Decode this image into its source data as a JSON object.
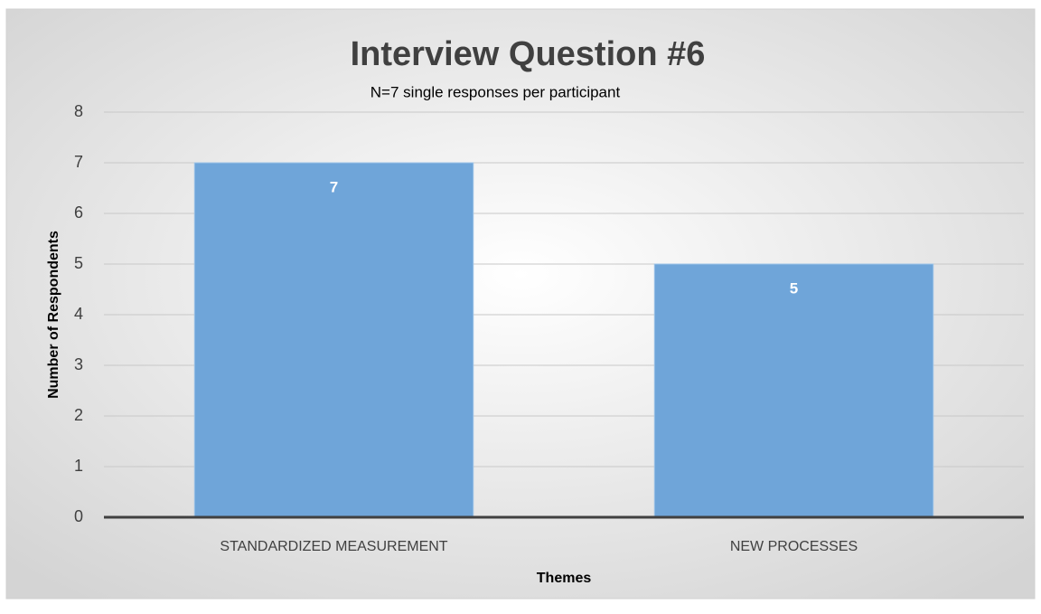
{
  "chart_data": {
    "type": "bar",
    "title": "Interview Question #6",
    "subtitle": "N=7 single responses per participant",
    "categories": [
      "STANDARDIZED MEASUREMENT",
      "NEW PROCESSES"
    ],
    "values": [
      7,
      5
    ],
    "color": "#6fa5d9",
    "ylim": [
      0,
      8
    ],
    "yticks": [
      0,
      1,
      2,
      3,
      4,
      5,
      6,
      7,
      8
    ],
    "grid": true,
    "xlabel": "Themes",
    "ylabel": "Number of Respondents"
  }
}
